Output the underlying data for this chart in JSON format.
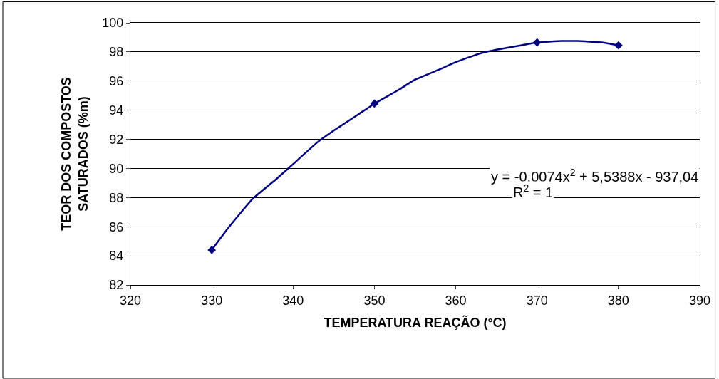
{
  "chart_data": {
    "type": "scatter",
    "xlabel": "TEMPERATURA REAÇÃO (°C)",
    "ylabel": "TEOR DOS COMPOSTOS\nSATURADOS (%m)",
    "xlim": [
      320,
      390
    ],
    "xticks": [
      320,
      330,
      340,
      350,
      360,
      370,
      380,
      390
    ],
    "ylim": [
      82,
      100
    ],
    "yticks": [
      82,
      84,
      86,
      88,
      90,
      92,
      94,
      96,
      98,
      100
    ],
    "grid": "y",
    "marker": "diamond",
    "series": [
      {
        "color": "#000080",
        "x": [
          330,
          350,
          370,
          380
        ],
        "values": [
          84.4,
          94.45,
          98.65,
          98.45
        ]
      },
      {
        "type": "line",
        "color": "#000080",
        "marker": "none",
        "x": [
          330,
          332,
          335,
          338,
          340,
          343,
          345,
          348,
          350,
          353,
          355,
          358,
          360,
          363,
          365,
          368,
          370,
          373,
          375,
          378,
          380
        ],
        "values": [
          84.4,
          85.9,
          87.9,
          89.3,
          90.3,
          91.8,
          92.6,
          93.7,
          94.45,
          95.4,
          96.1,
          96.8,
          97.3,
          97.9,
          98.15,
          98.45,
          98.65,
          98.75,
          98.75,
          98.65,
          98.45
        ]
      }
    ],
    "annotations": [
      "y = -0,0074x$^{2}$ + 5,5388x - 937,04",
      "R$^{2}$ = 1"
    ]
  }
}
